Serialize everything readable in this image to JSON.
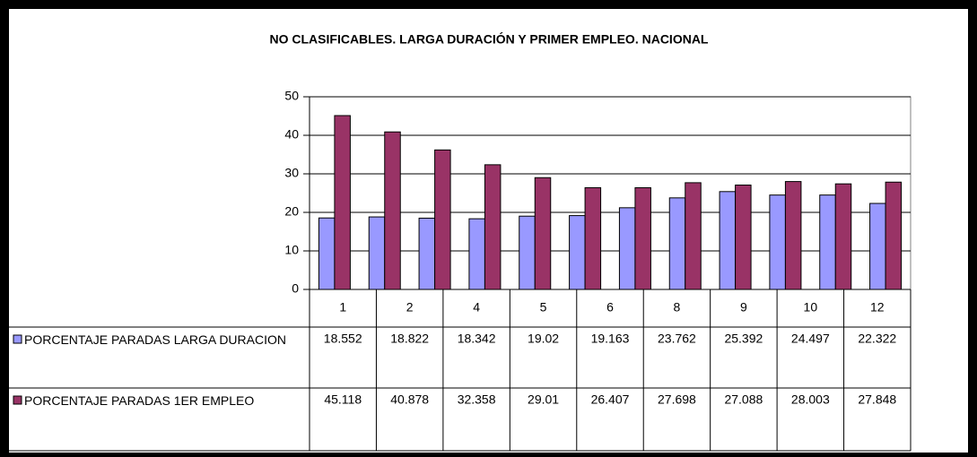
{
  "chart_data": {
    "type": "bar",
    "title": "NO CLASIFICABLES. LARGA DURACIÓN Y PRIMER EMPLEO. NACIONAL",
    "categories": [
      "1",
      "2",
      null,
      "4",
      "5",
      "6",
      null,
      "8",
      "9",
      "10",
      null,
      "12"
    ],
    "series": [
      {
        "name": "PORCENTAJE PARADAS LARGA DURACION",
        "color": "#9999ff",
        "values": [
          18.552,
          18.822,
          18.5,
          18.342,
          19.02,
          19.163,
          21.2,
          23.762,
          25.392,
          24.497,
          24.5,
          22.322
        ]
      },
      {
        "name": "PORCENTAJE PARADAS 1ER EMPLEO",
        "color": "#993366",
        "values": [
          45.118,
          40.878,
          36.2,
          32.358,
          29.01,
          26.407,
          26.4,
          27.698,
          27.088,
          28.003,
          27.4,
          27.848
        ]
      }
    ],
    "ylim": [
      0,
      50
    ],
    "yticks": [
      0,
      10,
      20,
      30,
      40,
      50
    ],
    "grid": true
  }
}
